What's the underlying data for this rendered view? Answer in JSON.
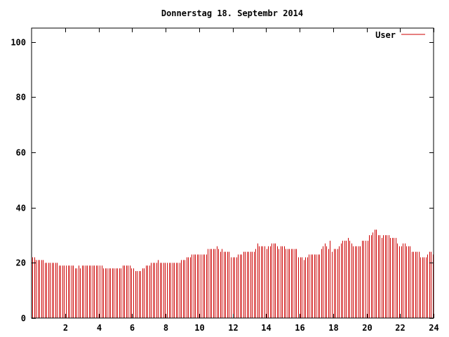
{
  "chart_data": {
    "type": "bar",
    "title": "Donnerstag 18. Septembr 2014",
    "xlabel": "",
    "ylabel": "",
    "xlim": [
      0,
      24
    ],
    "ylim": [
      0,
      105
    ],
    "x_ticks": [
      "2",
      "4",
      "6",
      "8",
      "10",
      "12",
      "14",
      "16",
      "18",
      "20",
      "22",
      "24"
    ],
    "y_ticks": [
      "0",
      "20",
      "40",
      "60",
      "80",
      "100"
    ],
    "legend": "top-right",
    "grid": false,
    "color": "#cc0000",
    "series": [
      {
        "name": "User",
        "values": [
          22,
          22,
          21,
          21,
          21,
          21,
          21,
          20,
          20,
          20,
          20,
          20,
          20,
          20,
          20,
          19,
          19,
          19,
          19,
          19,
          19,
          19,
          19,
          19,
          18,
          18,
          19,
          18,
          19,
          19,
          19,
          19,
          19,
          19,
          19,
          19,
          19,
          19,
          19,
          19,
          18,
          18,
          18,
          18,
          18,
          18,
          18,
          18,
          18,
          18,
          18,
          19,
          19,
          19,
          19,
          19,
          18,
          18,
          17,
          17,
          17,
          17,
          18,
          18,
          19,
          19,
          19,
          20,
          20,
          20,
          20,
          21,
          20,
          20,
          20,
          20,
          20,
          20,
          20,
          20,
          20,
          20,
          20,
          20,
          21,
          21,
          21,
          22,
          22,
          22,
          23,
          23,
          23,
          23,
          23,
          23,
          23,
          23,
          23,
          25,
          25,
          25,
          25,
          25,
          26,
          25,
          24,
          25,
          24,
          24,
          24,
          24,
          22,
          22,
          22,
          22,
          23,
          23,
          23,
          24,
          24,
          24,
          24,
          24,
          24,
          24,
          25,
          27,
          26,
          26,
          26,
          26,
          25,
          26,
          26,
          27,
          27,
          27,
          26,
          25,
          26,
          26,
          26,
          25,
          25,
          25,
          25,
          25,
          25,
          25,
          22,
          22,
          22,
          21,
          22,
          22,
          23,
          23,
          23,
          23,
          23,
          23,
          23,
          25,
          26,
          27,
          26,
          25,
          28,
          24,
          25,
          25,
          25,
          26,
          27,
          28,
          28,
          28,
          29,
          28,
          27,
          26,
          26,
          26,
          26,
          26,
          28,
          28,
          28,
          28,
          30,
          30,
          31,
          32,
          32,
          30,
          30,
          29,
          30,
          30,
          30,
          30,
          29,
          29,
          29,
          29,
          27,
          26,
          26,
          27,
          27,
          26,
          26,
          26,
          24,
          24,
          24,
          24,
          24,
          22,
          22,
          22,
          22,
          23,
          24,
          24,
          23
        ]
      }
    ]
  }
}
